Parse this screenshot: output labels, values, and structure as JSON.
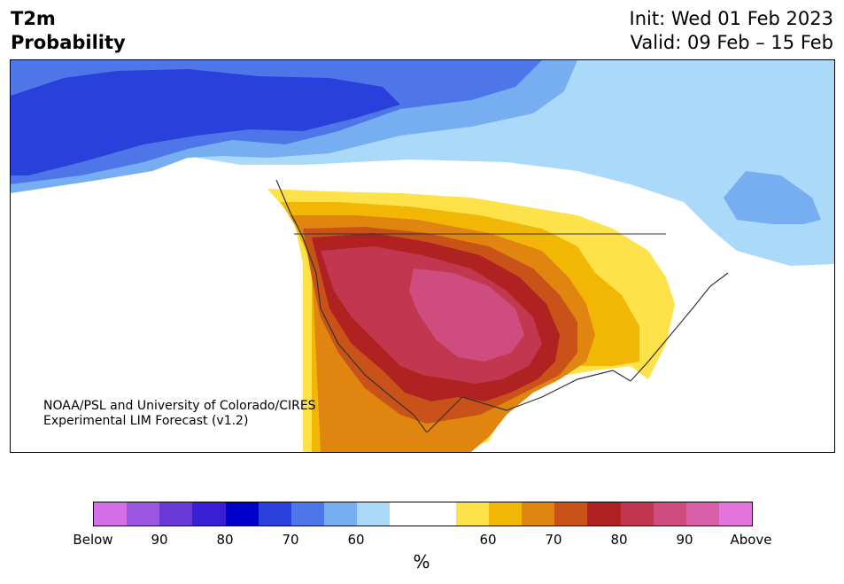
{
  "title": {
    "line1": "T2m",
    "line2": "Probability"
  },
  "dates": {
    "init": "Init: Wed 01 Feb 2023",
    "valid": "Valid: 09 Feb – 15 Feb"
  },
  "credit": {
    "line1": "NOAA/PSL and University of Colorado/CIRES",
    "line2": "Experimental LIM Forecast (v1.2)"
  },
  "colorbar": {
    "colors": [
      "#d56ee8",
      "#9b55e0",
      "#6a3ad8",
      "#3a1fd6",
      "#0000cc",
      "#2a40db",
      "#4f76e8",
      "#77aef2",
      "#aad9fa",
      "#ffffff",
      "#ffffff",
      "#fde24a",
      "#f2b705",
      "#e08510",
      "#c85218",
      "#b02222",
      "#c2374f",
      "#cf4c7e",
      "#d960a8",
      "#e374dc"
    ],
    "tick_labels": [
      "Below",
      "90",
      "80",
      "70",
      "60",
      "60",
      "70",
      "80",
      "90",
      "Above"
    ],
    "label": "%"
  },
  "map_colors": {
    "cold_60": "#aad9fa",
    "cold_70": "#77aef2",
    "cold_80": "#4f76e8",
    "cold_90": "#2a40db",
    "warm_60": "#fde24a",
    "warm_70": "#f2b705",
    "warm_80": "#e08510",
    "warm_90": "#c85218",
    "warm_100": "#b02222",
    "warm_110": "#c2374f",
    "warm_120": "#cf4c7e"
  }
}
